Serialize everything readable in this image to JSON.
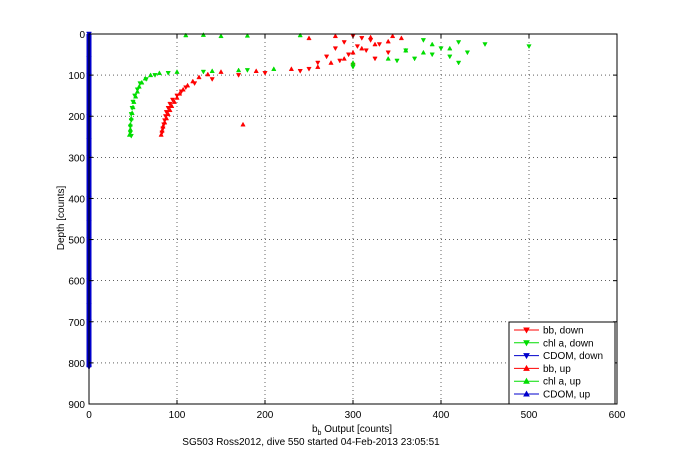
{
  "chart_data": {
    "type": "scatter",
    "xlabel_main": "b",
    "xlabel_sub": "b",
    "xlabel_rest": " Output [counts]",
    "ylabel": "Depth [counts]",
    "caption": "SG503 Ross2012, dive 550 started 04-Feb-2013 23:05:51",
    "xlim": [
      0,
      600
    ],
    "ylim": [
      0,
      900
    ],
    "y_reversed": true,
    "grid": true,
    "legend_position": "bottom-right",
    "x_ticks": [
      "0",
      "100",
      "200",
      "300",
      "400",
      "500",
      "600"
    ],
    "y_ticks": [
      "0",
      "100",
      "200",
      "300",
      "400",
      "500",
      "600",
      "700",
      "800",
      "900"
    ],
    "series": [
      {
        "name": "bb, down",
        "color": "#ff0000",
        "marker": "triangle-down",
        "points": [
          [
            300,
            5
          ],
          [
            310,
            10
          ],
          [
            320,
            15
          ],
          [
            290,
            20
          ],
          [
            330,
            25
          ],
          [
            305,
            30
          ],
          [
            280,
            35
          ],
          [
            315,
            40
          ],
          [
            340,
            45
          ],
          [
            295,
            50
          ],
          [
            270,
            55
          ],
          [
            325,
            60
          ],
          [
            285,
            65
          ],
          [
            260,
            70
          ],
          [
            300,
            75
          ],
          [
            250,
            85
          ],
          [
            240,
            90
          ],
          [
            200,
            95
          ],
          [
            170,
            100
          ],
          [
            140,
            110
          ],
          [
            120,
            120
          ],
          [
            110,
            130
          ],
          [
            105,
            140
          ],
          [
            100,
            150
          ],
          [
            95,
            160
          ],
          [
            92,
            170
          ],
          [
            90,
            180
          ],
          [
            88,
            190
          ],
          [
            87,
            200
          ],
          [
            86,
            210
          ],
          [
            85,
            220
          ],
          [
            84,
            230
          ],
          [
            83,
            240
          ]
        ]
      },
      {
        "name": "chl a, down",
        "color": "#00dd00",
        "marker": "triangle-down",
        "points": [
          [
            380,
            15
          ],
          [
            420,
            20
          ],
          [
            450,
            25
          ],
          [
            500,
            30
          ],
          [
            400,
            35
          ],
          [
            360,
            40
          ],
          [
            430,
            45
          ],
          [
            390,
            50
          ],
          [
            410,
            55
          ],
          [
            370,
            60
          ],
          [
            350,
            65
          ],
          [
            420,
            70
          ],
          [
            300,
            80
          ],
          [
            180,
            88
          ],
          [
            130,
            92
          ],
          [
            90,
            95
          ],
          [
            75,
            100
          ],
          [
            65,
            110
          ],
          [
            58,
            120
          ],
          [
            55,
            135
          ],
          [
            52,
            150
          ],
          [
            50,
            165
          ],
          [
            49,
            180
          ],
          [
            48,
            195
          ],
          [
            48,
            210
          ],
          [
            47,
            225
          ],
          [
            47,
            240
          ],
          [
            48,
            248
          ]
        ]
      },
      {
        "name": "CDOM, down",
        "color": "#0000cc",
        "marker": "triangle-down",
        "points": [
          [
            0,
            0
          ],
          [
            0,
            100
          ],
          [
            0,
            200
          ],
          [
            0,
            300
          ],
          [
            0,
            400
          ],
          [
            0,
            500
          ],
          [
            0,
            600
          ],
          [
            0,
            700
          ],
          [
            0,
            810
          ]
        ]
      },
      {
        "name": "bb, up",
        "color": "#ff0000",
        "marker": "triangle-up",
        "points": [
          [
            82,
            245
          ],
          [
            83,
            235
          ],
          [
            84,
            225
          ],
          [
            86,
            215
          ],
          [
            88,
            205
          ],
          [
            90,
            195
          ],
          [
            92,
            185
          ],
          [
            94,
            175
          ],
          [
            97,
            165
          ],
          [
            100,
            155
          ],
          [
            103,
            145
          ],
          [
            107,
            135
          ],
          [
            112,
            125
          ],
          [
            118,
            115
          ],
          [
            125,
            105
          ],
          [
            135,
            98
          ],
          [
            150,
            92
          ],
          [
            175,
            220
          ],
          [
            190,
            90
          ],
          [
            230,
            85
          ],
          [
            260,
            80
          ],
          [
            275,
            70
          ],
          [
            290,
            60
          ],
          [
            300,
            45
          ],
          [
            310,
            35
          ],
          [
            325,
            25
          ],
          [
            340,
            18
          ],
          [
            355,
            10
          ],
          [
            345,
            5
          ],
          [
            280,
            5
          ],
          [
            250,
            10
          ],
          [
            320,
            8
          ]
        ]
      },
      {
        "name": "chl a, up",
        "color": "#00dd00",
        "marker": "triangle-up",
        "points": [
          [
            46,
            245
          ],
          [
            47,
            232
          ],
          [
            47,
            220
          ],
          [
            48,
            205
          ],
          [
            49,
            192
          ],
          [
            50,
            178
          ],
          [
            51,
            165
          ],
          [
            53,
            152
          ],
          [
            55,
            140
          ],
          [
            57,
            128
          ],
          [
            60,
            118
          ],
          [
            64,
            108
          ],
          [
            70,
            100
          ],
          [
            80,
            95
          ],
          [
            100,
            92
          ],
          [
            140,
            90
          ],
          [
            170,
            88
          ],
          [
            210,
            85
          ],
          [
            300,
            70
          ],
          [
            340,
            60
          ],
          [
            380,
            45
          ],
          [
            410,
            35
          ],
          [
            390,
            25
          ],
          [
            360,
            40
          ],
          [
            150,
            5
          ],
          [
            130,
            2
          ],
          [
            110,
            3
          ],
          [
            180,
            4
          ],
          [
            240,
            3
          ]
        ]
      },
      {
        "name": "CDOM, up",
        "color": "#0000cc",
        "marker": "triangle-up",
        "points": [
          [
            0,
            805
          ],
          [
            0,
            650
          ],
          [
            0,
            450
          ],
          [
            0,
            250
          ],
          [
            0,
            50
          ]
        ]
      }
    ]
  }
}
